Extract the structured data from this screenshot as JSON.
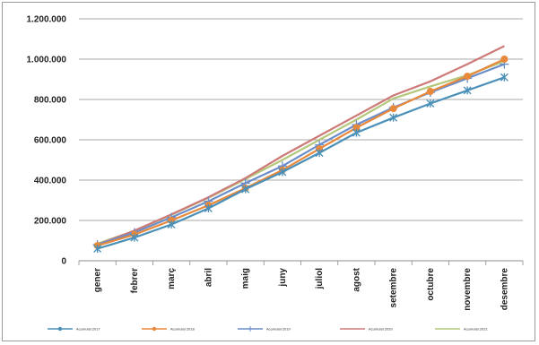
{
  "chart_data": {
    "type": "line",
    "title": "",
    "xlabel": "",
    "ylabel": "",
    "ylim": [
      0,
      1200000
    ],
    "ytick_values": [
      0,
      200000,
      400000,
      600000,
      800000,
      1000000,
      1200000
    ],
    "ytick_labels": [
      "0",
      "200.000",
      "400.000",
      "600.000",
      "800.000",
      "1.000.000",
      "1.200.000"
    ],
    "categories": [
      "gener",
      "febrer",
      "març",
      "abril",
      "maig",
      "juny",
      "juliol",
      "agost",
      "setembre",
      "octubre",
      "novembre",
      "desembre"
    ],
    "grid": "horizontal",
    "legend_position": "bottom",
    "series": [
      {
        "name": "Acumulat 2017",
        "color": "#4a90b8",
        "marker": "diamond",
        "values": [
          60000,
          115000,
          180000,
          260000,
          355000,
          440000,
          535000,
          635000,
          710000,
          780000,
          845000,
          910000
        ]
      },
      {
        "name": "Acumulat 2018",
        "color": "#e8883a",
        "marker": "circle",
        "values": [
          75000,
          130000,
          200000,
          275000,
          360000,
          450000,
          555000,
          660000,
          755000,
          840000,
          915000,
          1000000
        ]
      },
      {
        "name": "Acumulat 2019",
        "color": "#6b8dc9",
        "marker": "plus",
        "values": [
          80000,
          140000,
          215000,
          295000,
          385000,
          470000,
          575000,
          675000,
          760000,
          835000,
          905000,
          975000
        ]
      },
      {
        "name": "Acumulat 2020",
        "color": "#cd7a78",
        "marker": "none",
        "values": [
          80000,
          150000,
          230000,
          315000,
          410000,
          520000,
          620000,
          720000,
          820000,
          890000,
          975000,
          1065000
        ]
      },
      {
        "name": "Acumulat 2021",
        "color": "#b4c77a",
        "marker": "none",
        "values": [
          85000,
          148000,
          228000,
          312000,
          405000,
          500000,
          600000,
          700000,
          805000,
          865000,
          920000,
          990000
        ]
      }
    ]
  }
}
